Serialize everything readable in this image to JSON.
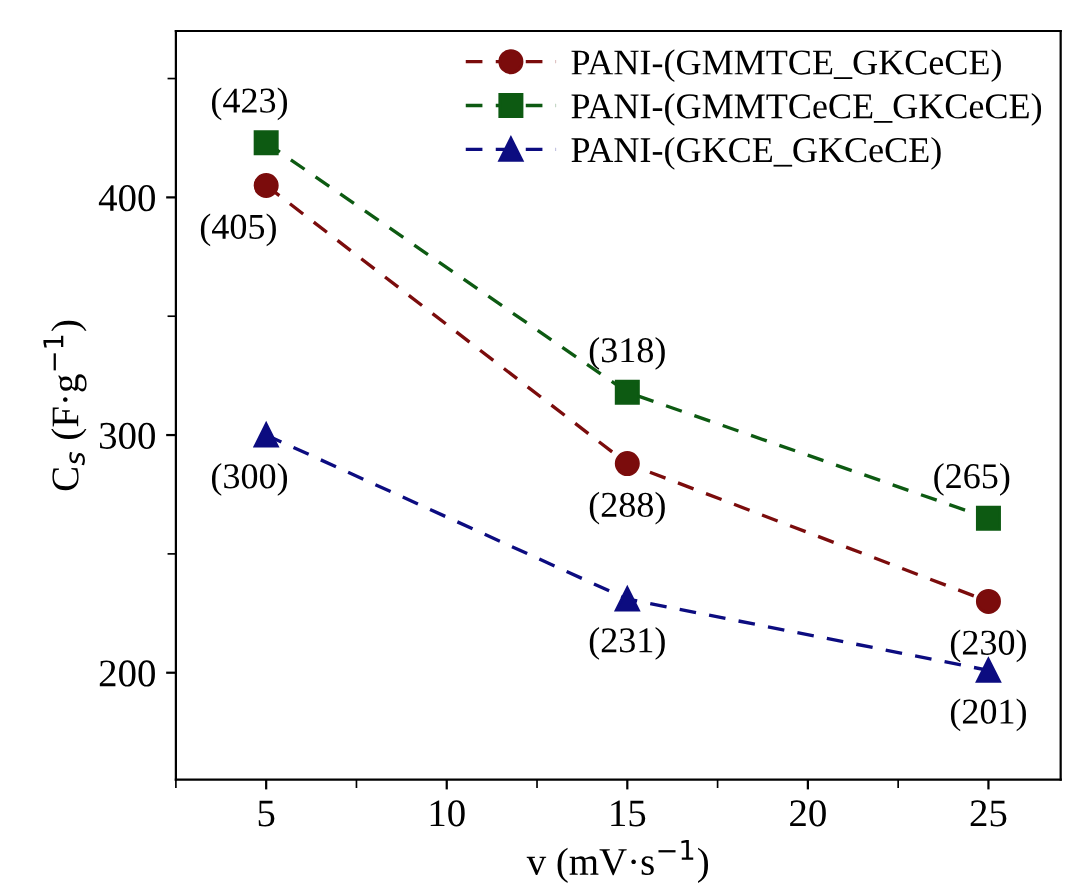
{
  "chart_data": {
    "type": "line",
    "xlabel": "v (mV·s$^{−1}$)",
    "ylabel": "C$_{s}$ (F·g$^{−1}$)",
    "x": [
      5,
      15,
      25
    ],
    "series": [
      {
        "name": "PANI-(GMMTCE_GKCeCE)",
        "color": "#7b0c0c",
        "marker": "circle",
        "values": [
          405,
          288,
          230
        ],
        "value_labels": [
          "(405)",
          "(288)",
          "(230)"
        ]
      },
      {
        "name": "PANI-(GMMTCeCE_GKCeCE)",
        "color": "#0d5a12",
        "marker": "square",
        "values": [
          423,
          318,
          265
        ],
        "value_labels": [
          "(423)",
          "(318)",
          "(265)"
        ]
      },
      {
        "name": "PANI-(GKCE_GKCeCE)",
        "color": "#0c0c80",
        "marker": "triangle",
        "values": [
          300,
          231,
          201
        ],
        "value_labels": [
          "(300)",
          "(231)",
          "(201)"
        ]
      }
    ],
    "line_style": "dashed",
    "xlim": [
      2.5,
      27
    ],
    "ylim": [
      155,
      470
    ],
    "xticks": [
      5,
      10,
      15,
      20,
      25
    ],
    "yticks": [
      200,
      300,
      400
    ],
    "grid": false,
    "legend": "top right"
  }
}
